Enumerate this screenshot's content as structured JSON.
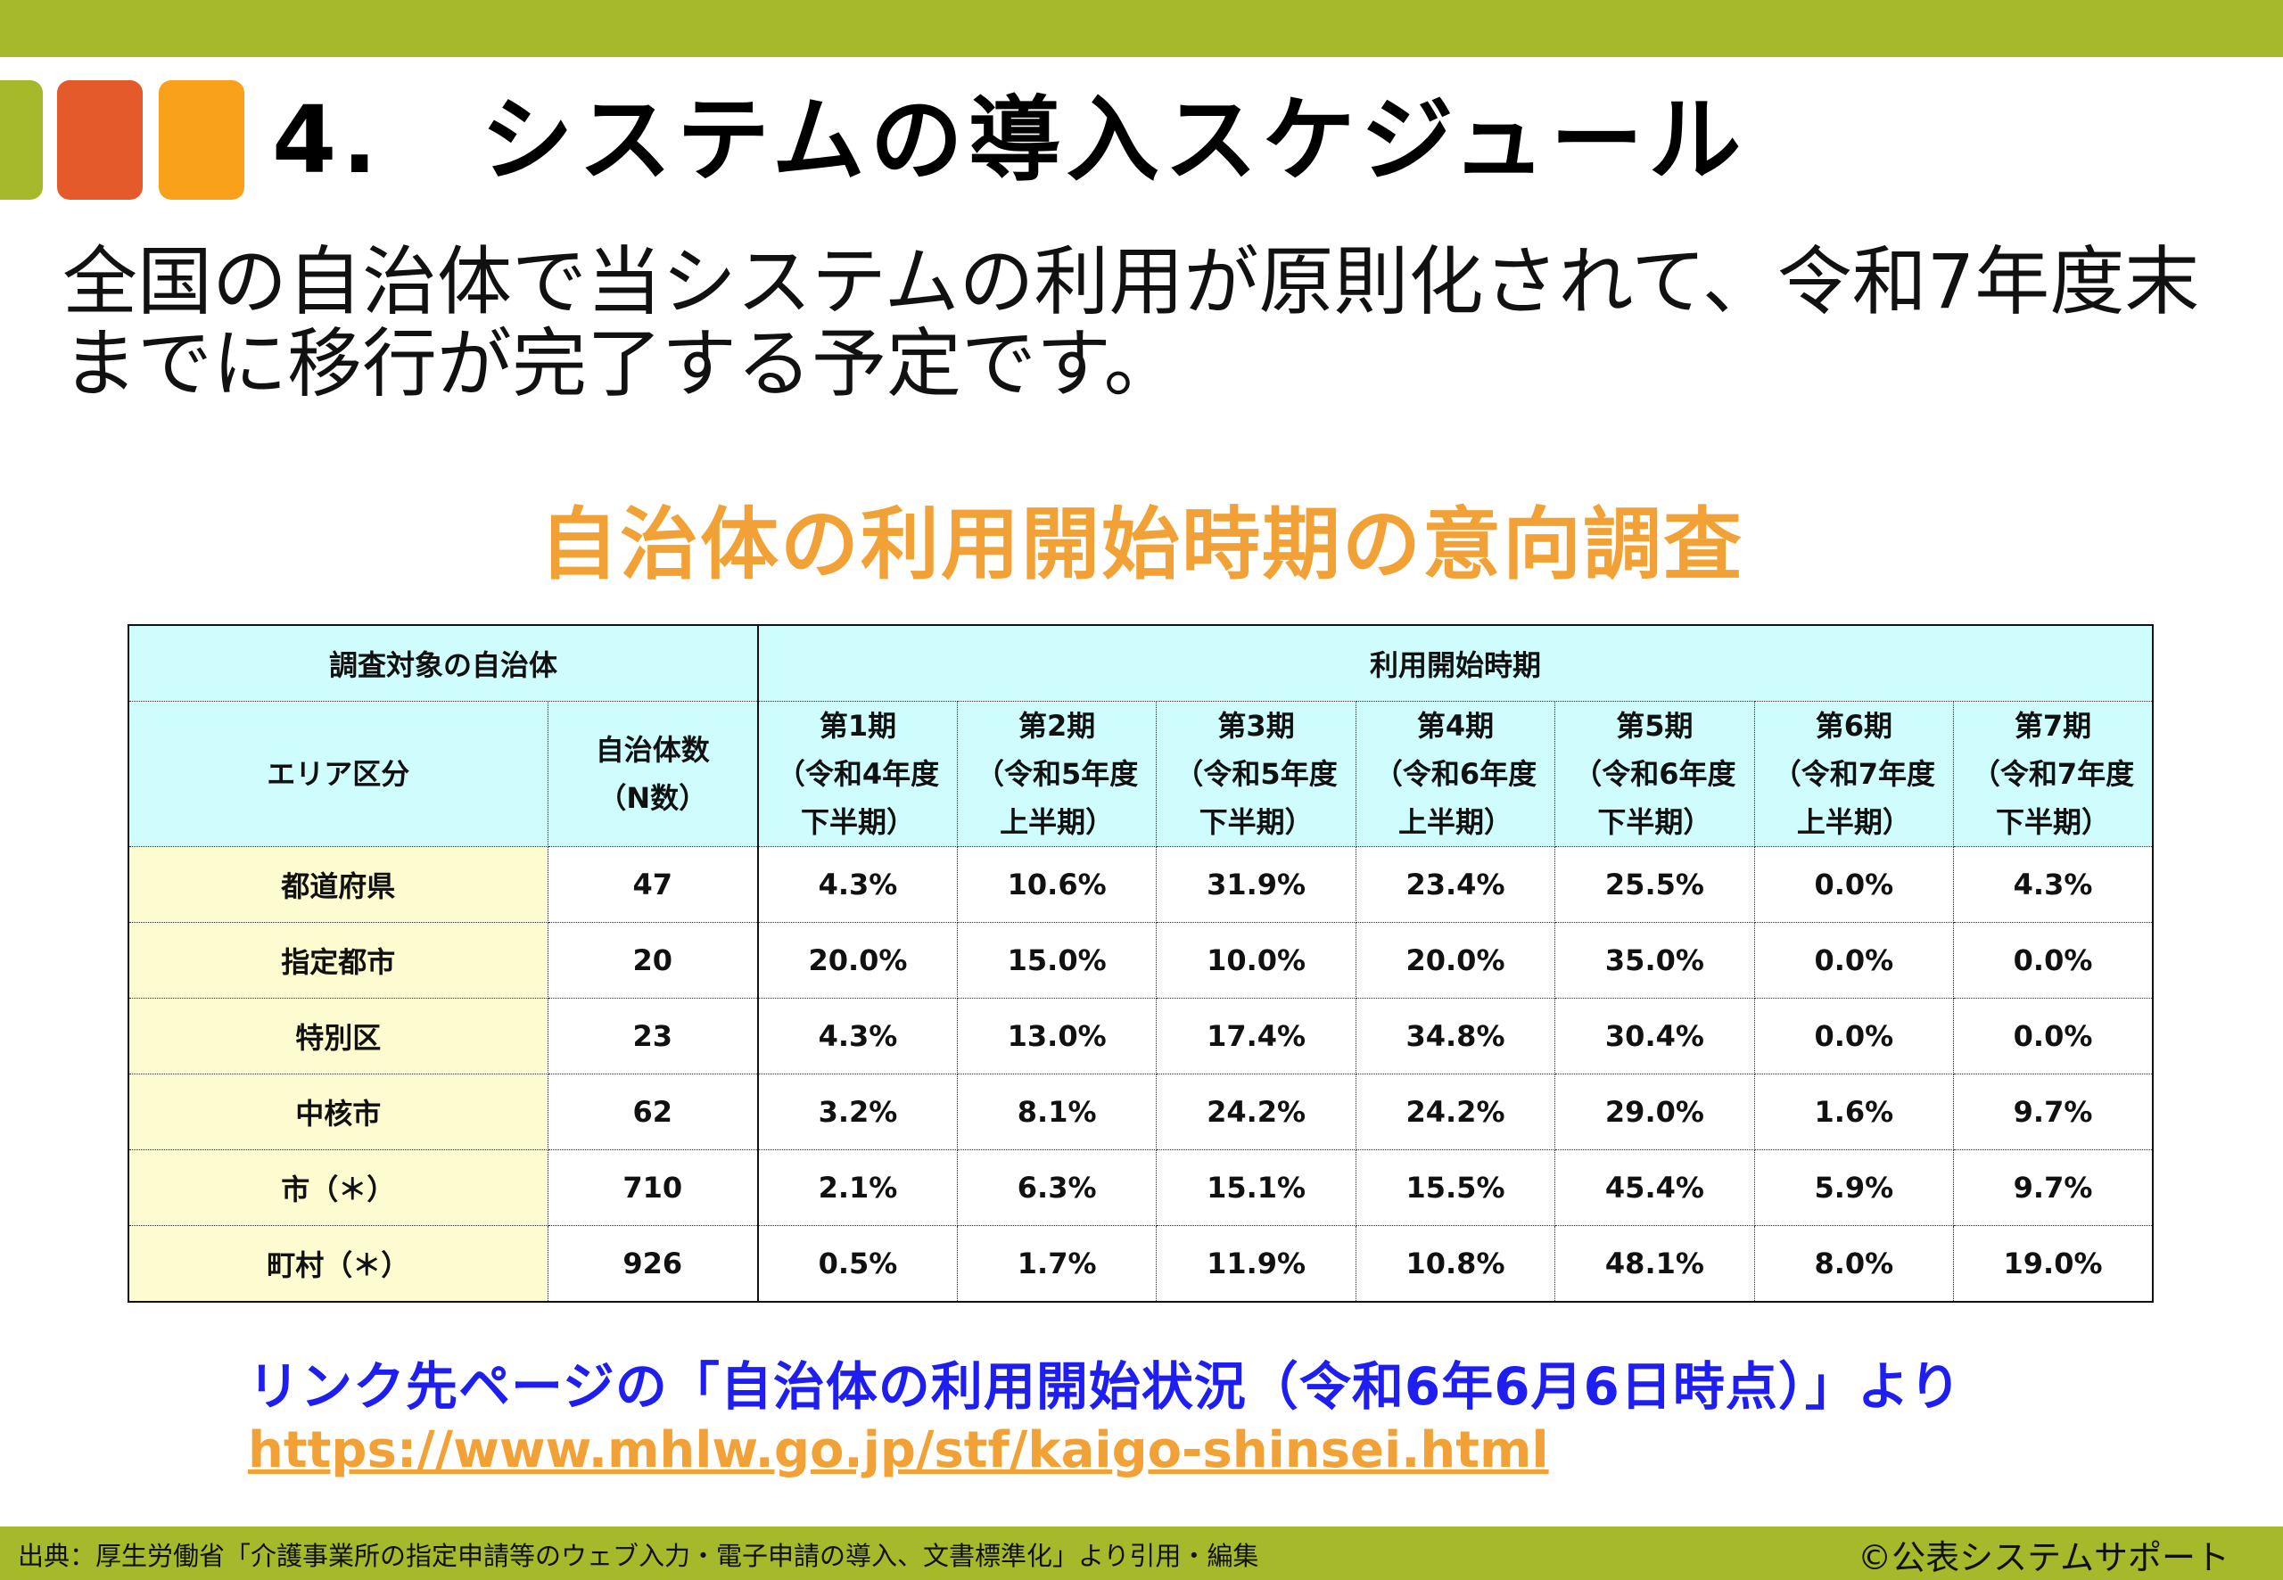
{
  "colors": {
    "accent_green": "#a5b92a",
    "accent_red": "#e55a2b",
    "accent_orange": "#f9a11b",
    "header_cyan": "#cffcfd",
    "area_yellow": "#fdfbd0"
  },
  "header": {
    "title": "4.　システムの導入スケジュール"
  },
  "lead": {
    "line1": "全国の自治体で当システムの利用が原則化されて、令和7年度末",
    "line2": "までに移行が完了する予定です。"
  },
  "survey": {
    "title": "自治体の利用開始時期の意向調査",
    "group_header_target": "調査対象の自治体",
    "group_header_period": "利用開始時期",
    "col_area": "エリア区分",
    "col_count": [
      "自治体数",
      "（N数）"
    ],
    "periods": [
      [
        "第1期",
        "（令和4年度",
        "下半期）"
      ],
      [
        "第2期",
        "（令和5年度",
        "上半期）"
      ],
      [
        "第3期",
        "（令和5年度",
        "下半期）"
      ],
      [
        "第4期",
        "（令和6年度",
        "上半期）"
      ],
      [
        "第5期",
        "（令和6年度",
        "下半期）"
      ],
      [
        "第6期",
        "（令和7年度",
        "上半期）"
      ],
      [
        "第7期",
        "（令和7年度",
        "下半期）"
      ]
    ],
    "rows": [
      {
        "area": "都道府県",
        "count": "47",
        "values": [
          "4.3%",
          "10.6%",
          "31.9%",
          "23.4%",
          "25.5%",
          "0.0%",
          "4.3%"
        ]
      },
      {
        "area": "指定都市",
        "count": "20",
        "values": [
          "20.0%",
          "15.0%",
          "10.0%",
          "20.0%",
          "35.0%",
          "0.0%",
          "0.0%"
        ]
      },
      {
        "area": "特別区",
        "count": "23",
        "values": [
          "4.3%",
          "13.0%",
          "17.4%",
          "34.8%",
          "30.4%",
          "0.0%",
          "0.0%"
        ]
      },
      {
        "area": "中核市",
        "count": "62",
        "values": [
          "3.2%",
          "8.1%",
          "24.2%",
          "24.2%",
          "29.0%",
          "1.6%",
          "9.7%"
        ]
      },
      {
        "area": "市（＊）",
        "count": "710",
        "values": [
          "2.1%",
          "6.3%",
          "15.1%",
          "15.5%",
          "45.4%",
          "5.9%",
          "9.7%"
        ]
      },
      {
        "area": "町村（＊）",
        "count": "926",
        "values": [
          "0.5%",
          "1.7%",
          "11.9%",
          "10.8%",
          "48.1%",
          "8.0%",
          "19.0%"
        ]
      }
    ]
  },
  "source": {
    "text": "リンク先ページの「自治体の利用開始状況（令和6年6月6日時点）」より",
    "url": "https://www.mhlw.go.jp/stf/kaigo-shinsei.html"
  },
  "footer": {
    "source": "出典：厚生労働省「介護事業所の指定申請等のウェブ入力・電子申請の導入、文書標準化」より引用・編集",
    "copyright": "©公表システムサポート"
  }
}
